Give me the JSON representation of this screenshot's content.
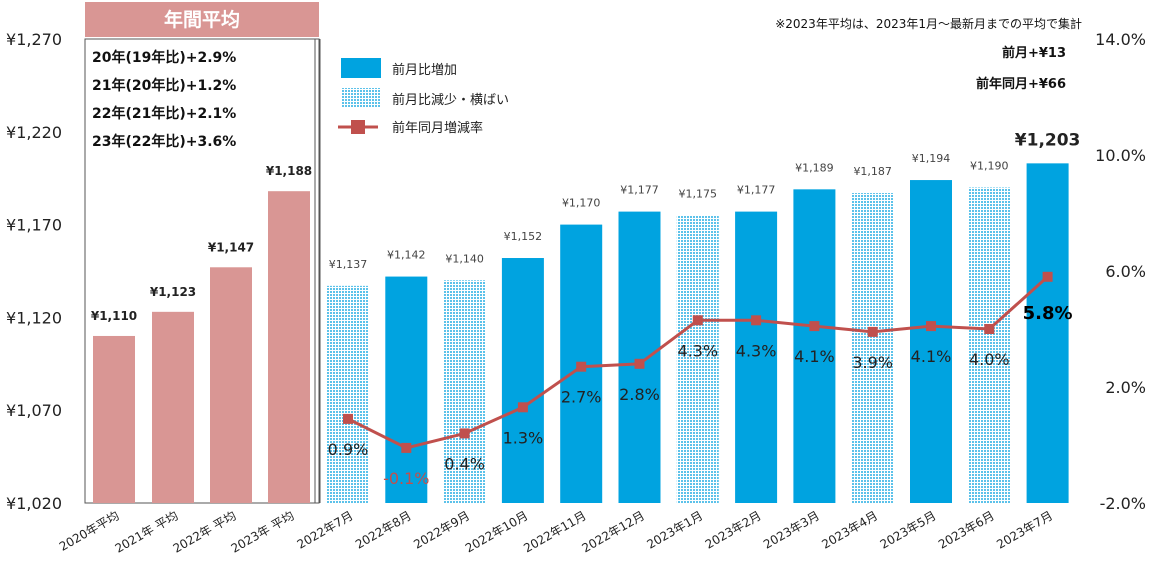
{
  "chart_data": {
    "type": "bar",
    "note": "※2023年平均は、2023年1月～最新月までの平均で集計",
    "avg_panel": {
      "title": "年間平均",
      "notes": [
        "20年(19年比)+2.9%",
        "21年(20年比)+1.2%",
        "22年(21年比)+2.1%",
        "23年(22年比)+3.6%"
      ]
    },
    "right_notes": [
      "前月+¥13",
      "前年同月+¥66"
    ],
    "legend": [
      "前月比増加",
      "前月比減少・横ばい",
      "前年同月増減率"
    ],
    "colors": {
      "avg": "#d99694",
      "increase": "#00a3e0",
      "decrease": "#7fd0ee",
      "line": "#c0504d",
      "title_bg": "#d99694"
    },
    "y_left": {
      "min": 1020,
      "max": 1270,
      "ticks": [
        "¥1,270",
        "¥1,220",
        "¥1,170",
        "¥1,120",
        "¥1,070",
        "¥1,020"
      ]
    },
    "y_right": {
      "min": -2.0,
      "max": 14.0,
      "ticks": [
        "14.0%",
        "10.0%",
        "6.0%",
        "2.0%",
        "-2.0%"
      ]
    },
    "averages": [
      {
        "category": "2020年平均",
        "value": 1110,
        "label": "¥1,110"
      },
      {
        "category": "2021年 平均",
        "value": 1123,
        "label": "¥1,123"
      },
      {
        "category": "2022年 平均",
        "value": 1147,
        "label": "¥1,147"
      },
      {
        "category": "2023年 平均",
        "value": 1188,
        "label": "¥1,188"
      }
    ],
    "monthly": [
      {
        "category": "2022年7月",
        "value": 1137,
        "label": "¥1,137",
        "kind": "decrease",
        "rate": 0.9,
        "rate_label": "0.9%"
      },
      {
        "category": "2022年8月",
        "value": 1142,
        "label": "¥1,142",
        "kind": "increase",
        "rate": -0.1,
        "rate_label": "-0.1%"
      },
      {
        "category": "2022年9月",
        "value": 1140,
        "label": "¥1,140",
        "kind": "decrease",
        "rate": 0.4,
        "rate_label": "0.4%"
      },
      {
        "category": "2022年10月",
        "value": 1152,
        "label": "¥1,152",
        "kind": "increase",
        "rate": 1.3,
        "rate_label": "1.3%"
      },
      {
        "category": "2022年11月",
        "value": 1170,
        "label": "¥1,170",
        "kind": "increase",
        "rate": 2.7,
        "rate_label": "2.7%"
      },
      {
        "category": "2022年12月",
        "value": 1177,
        "label": "¥1,177",
        "kind": "increase",
        "rate": 2.8,
        "rate_label": "2.8%"
      },
      {
        "category": "2023年1月",
        "value": 1175,
        "label": "¥1,175",
        "kind": "decrease",
        "rate": 4.3,
        "rate_label": "4.3%"
      },
      {
        "category": "2023年2月",
        "value": 1177,
        "label": "¥1,177",
        "kind": "increase",
        "rate": 4.3,
        "rate_label": "4.3%"
      },
      {
        "category": "2023年3月",
        "value": 1189,
        "label": "¥1,189",
        "kind": "increase",
        "rate": 4.1,
        "rate_label": "4.1%"
      },
      {
        "category": "2023年4月",
        "value": 1187,
        "label": "¥1,187",
        "kind": "decrease",
        "rate": 3.9,
        "rate_label": "3.9%"
      },
      {
        "category": "2023年5月",
        "value": 1194,
        "label": "¥1,194",
        "kind": "increase",
        "rate": 4.1,
        "rate_label": "4.1%"
      },
      {
        "category": "2023年6月",
        "value": 1190,
        "label": "¥1,190",
        "kind": "decrease",
        "rate": 4.0,
        "rate_label": "4.0%"
      },
      {
        "category": "2023年7月",
        "value": 1203,
        "label": "¥1,203",
        "kind": "increase",
        "rate": 5.8,
        "rate_label": "5.8%"
      }
    ]
  }
}
